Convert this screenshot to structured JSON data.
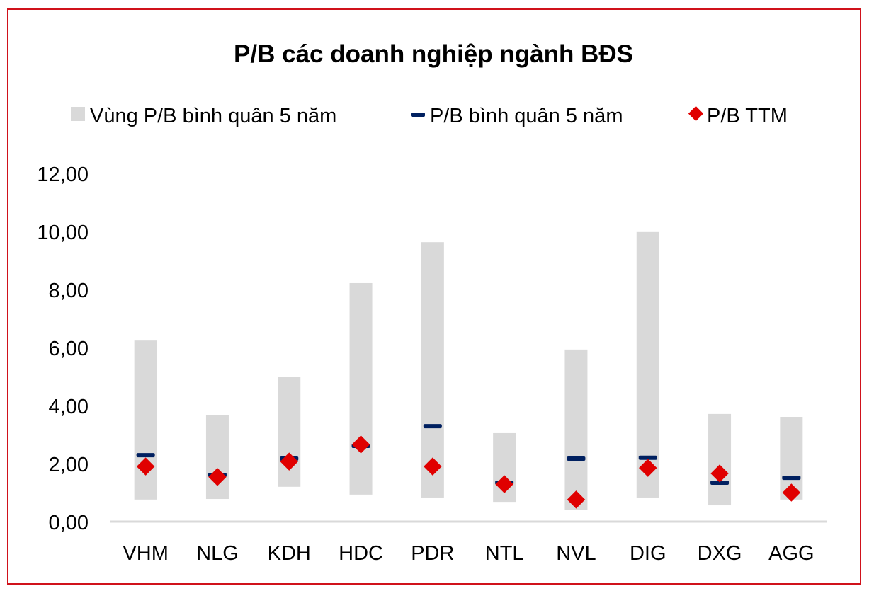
{
  "chart_data": {
    "type": "range-bar-with-markers",
    "title": "P/B các doanh nghiệp ngành BĐS",
    "xlabel": "",
    "ylabel": "",
    "ylim": [
      0,
      12
    ],
    "yticks": [
      "0,00",
      "2,00",
      "4,00",
      "6,00",
      "8,00",
      "10,00",
      "12,00"
    ],
    "grid": false,
    "legend_position": "top",
    "categories": [
      "VHM",
      "NLG",
      "KDH",
      "HDC",
      "PDR",
      "NTL",
      "NVL",
      "DIG",
      "DXG",
      "AGG"
    ],
    "series": [
      {
        "name": "Vùng P/B bình quân 5 năm",
        "kind": "range",
        "color": "#d9d9d9",
        "low": [
          0.76,
          0.78,
          1.2,
          0.93,
          0.83,
          0.68,
          0.41,
          0.83,
          0.56,
          0.76
        ],
        "high": [
          6.24,
          3.66,
          4.98,
          8.22,
          9.63,
          3.05,
          5.93,
          9.98,
          3.71,
          3.61
        ]
      },
      {
        "name": "P/B bình quân 5 năm",
        "kind": "dash",
        "color": "#002060",
        "values": [
          2.29,
          1.61,
          2.17,
          2.61,
          3.29,
          1.34,
          2.17,
          2.2,
          1.34,
          1.51
        ]
      },
      {
        "name": "P/B TTM",
        "kind": "diamond",
        "color": "#e00000",
        "values": [
          1.9,
          1.54,
          2.07,
          2.66,
          1.9,
          1.29,
          0.76,
          1.85,
          1.66,
          1.0
        ]
      }
    ]
  }
}
